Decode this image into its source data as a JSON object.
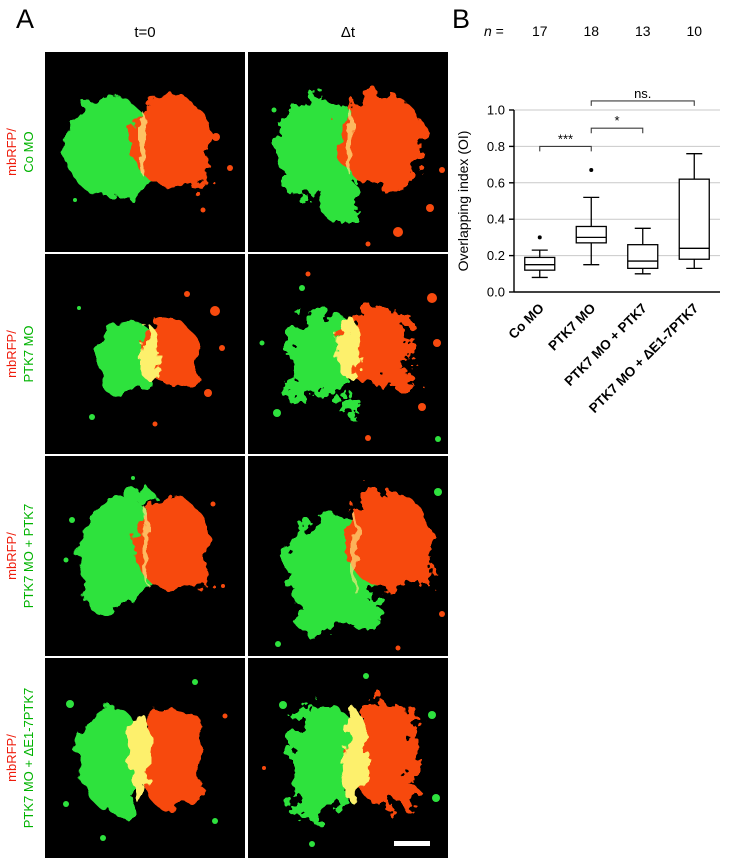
{
  "figure": {
    "panel_a": {
      "label": "A",
      "column_headers": {
        "t0": "t=0",
        "dt": "Δt"
      },
      "rows": [
        {
          "label_red": "mbRFP/",
          "label_green": "Co MO"
        },
        {
          "label_red": "mbRFP/",
          "label_green": "PTK7 MO"
        },
        {
          "label_red": "mbRFP/",
          "label_green": "PTK7 MO + PTK7"
        },
        {
          "label_red": "mbRFP/",
          "label_green": "PTK7 MO + ΔE1-7PTK7"
        }
      ],
      "label_colors": {
        "mbrfp": "#ee1b0b",
        "mo": "#00b300"
      },
      "image_colors": {
        "green_cells": "#2ee23e",
        "red_cells": "#f74a0e",
        "overlap_yellow": "#fdf06c",
        "background": "#000000"
      }
    },
    "panel_b": {
      "label": "B"
    }
  },
  "chart_data": {
    "type": "box",
    "title": "",
    "ylabel": "Overlapping index (OI)",
    "xlabel": "",
    "ylim": [
      0.0,
      1.0
    ],
    "yticks": [
      0.0,
      0.2,
      0.4,
      0.6,
      0.8,
      1.0
    ],
    "grid": true,
    "legend_position": "none",
    "categories": [
      "Co MO",
      "PTK7 MO",
      "PTK7 MO + PTK7",
      "PTK7 MO + ΔE1-7PTK7"
    ],
    "n_prefix": "n",
    "n_equals": "=",
    "n_values": [
      17,
      18,
      13,
      10
    ],
    "boxes": [
      {
        "category": "Co MO",
        "whisker_low": 0.08,
        "q1": 0.12,
        "median": 0.15,
        "q3": 0.19,
        "whisker_high": 0.23,
        "outliers": [
          0.3
        ]
      },
      {
        "category": "PTK7 MO",
        "whisker_low": 0.15,
        "q1": 0.27,
        "median": 0.3,
        "q3": 0.36,
        "whisker_high": 0.52,
        "outliers": [
          0.67
        ]
      },
      {
        "category": "PTK7 MO + PTK7",
        "whisker_low": 0.1,
        "q1": 0.13,
        "median": 0.17,
        "q3": 0.26,
        "whisker_high": 0.35,
        "outliers": []
      },
      {
        "category": "PTK7 MO + ΔE1-7PTK7",
        "whisker_low": 0.13,
        "q1": 0.18,
        "median": 0.24,
        "q3": 0.62,
        "whisker_high": 0.76,
        "outliers": []
      }
    ],
    "significance": [
      {
        "from": 0,
        "to": 1,
        "label": "***",
        "y": 0.8
      },
      {
        "from": 1,
        "to": 2,
        "label": "*",
        "y": 0.9
      },
      {
        "from": 1,
        "to": 3,
        "label": "ns.",
        "y": 1.05
      }
    ],
    "box_fill": "#ffffff",
    "stroke": "#000000",
    "gridline_color": "#c9c9c9"
  }
}
